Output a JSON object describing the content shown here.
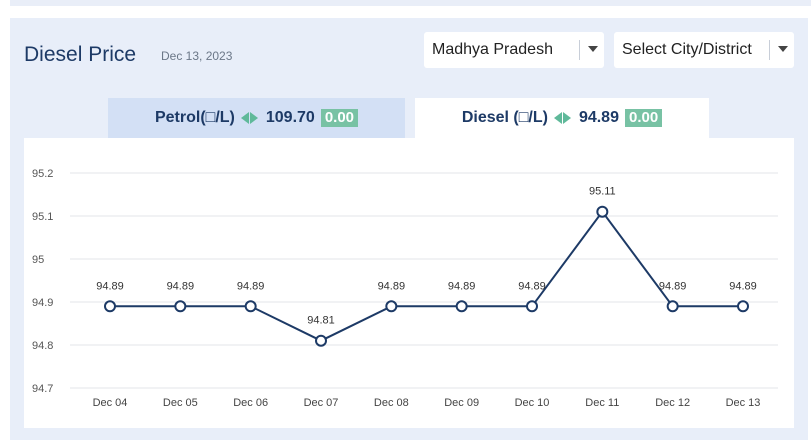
{
  "header": {
    "title": "Diesel Price",
    "date": "Dec 13, 2023"
  },
  "filters": {
    "state": "Madhya Pradesh",
    "city": "Select City/District"
  },
  "tabs": [
    {
      "label": "Petrol(□/L)",
      "price": "109.70",
      "change": "0.00",
      "active": false
    },
    {
      "label": "Diesel (□/L)",
      "price": "94.89",
      "change": "0.00",
      "active": true
    }
  ],
  "colors": {
    "line": "#1d3a66",
    "badge": "#78c2a4",
    "arrow": "#5fb99a"
  },
  "chart_data": {
    "type": "line",
    "x": [
      "Dec 04",
      "Dec 05",
      "Dec 06",
      "Dec 07",
      "Dec 08",
      "Dec 09",
      "Dec 10",
      "Dec 11",
      "Dec 12",
      "Dec 13"
    ],
    "series": [
      {
        "values": [
          94.89,
          94.89,
          94.89,
          94.81,
          94.89,
          94.89,
          94.89,
          95.11,
          94.89,
          94.89
        ],
        "labels": [
          "94.89",
          "94.89",
          "94.89",
          "94.81",
          "94.89",
          "94.89",
          "94.89",
          "95.11",
          "94.89",
          "94.89"
        ]
      }
    ],
    "yticks": [
      "95.2",
      "95.1",
      "95",
      "94.9",
      "94.8",
      "94.7"
    ],
    "ytick_values": [
      95.2,
      95.1,
      95.0,
      94.9,
      94.8,
      94.7
    ],
    "ylim": [
      94.7,
      95.2
    ],
    "grid": true,
    "legend": "none"
  }
}
